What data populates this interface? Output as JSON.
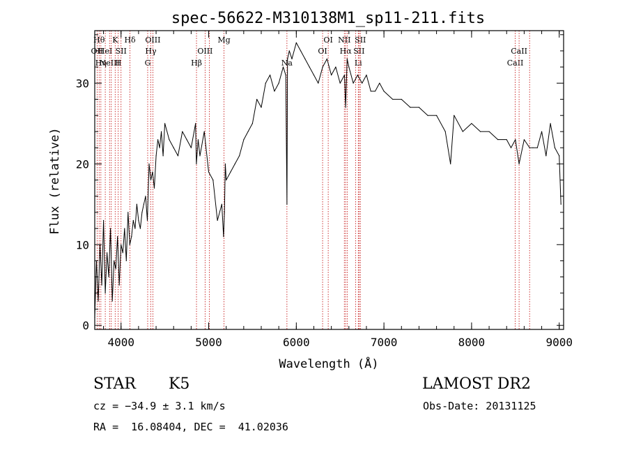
{
  "chart_data": {
    "type": "line",
    "title": "spec-56622-M310138M1_sp11-211.fits",
    "xlabel": "Wavelength (Å)",
    "ylabel": "Flux (relative)",
    "xlim": [
      3700,
      9050
    ],
    "ylim": [
      -0.5,
      36.5
    ],
    "xticks": [
      4000,
      5000,
      6000,
      7000,
      8000,
      9000
    ],
    "yticks": [
      0,
      10,
      20,
      30
    ],
    "grid": false,
    "legend": "none",
    "series": [
      {
        "x": [
          3700,
          3720,
          3740,
          3760,
          3780,
          3800,
          3820,
          3840,
          3860,
          3880,
          3900,
          3920,
          3940,
          3960,
          3980,
          4000,
          4020,
          4040,
          4060,
          4080,
          4100,
          4120,
          4140,
          4160,
          4180,
          4200,
          4220,
          4240,
          4260,
          4280,
          4300,
          4320,
          4340,
          4360,
          4380,
          4400,
          4420,
          4440,
          4460,
          4480,
          4500,
          4550,
          4600,
          4650,
          4700,
          4750,
          4800,
          4850,
          4860,
          4880,
          4900,
          4950,
          5000,
          5050,
          5100,
          5150,
          5170,
          5180,
          5190,
          5200,
          5250,
          5300,
          5350,
          5400,
          5450,
          5500,
          5550,
          5600,
          5650,
          5700,
          5750,
          5800,
          5850,
          5880,
          5893,
          5900,
          5920,
          5950,
          6000,
          6050,
          6100,
          6150,
          6200,
          6250,
          6300,
          6350,
          6400,
          6450,
          6500,
          6550,
          6563,
          6580,
          6600,
          6650,
          6700,
          6750,
          6800,
          6850,
          6900,
          6950,
          7000,
          7100,
          7200,
          7300,
          7400,
          7500,
          7600,
          7700,
          7760,
          7800,
          7900,
          8000,
          8100,
          8200,
          8300,
          8400,
          8450,
          8500,
          8542,
          8600,
          8662,
          8700,
          8750,
          8800,
          8850,
          8900,
          8950,
          9000,
          9020
        ],
        "y": [
          1,
          8,
          3,
          10,
          5,
          13,
          4,
          9,
          6,
          12,
          3,
          8,
          7,
          11,
          5,
          10,
          9,
          12,
          8,
          14,
          10,
          11,
          13,
          12,
          15,
          13,
          12,
          14,
          15,
          16,
          13,
          20,
          18,
          19,
          17,
          21,
          23,
          22,
          24,
          21,
          25,
          23,
          22,
          21,
          24,
          23,
          22,
          25,
          20,
          23,
          21,
          24,
          19,
          18,
          13,
          15,
          11,
          14,
          20,
          18,
          19,
          20,
          21,
          23,
          24,
          25,
          28,
          27,
          30,
          31,
          29,
          30,
          32,
          31,
          15,
          33,
          34,
          33,
          35,
          34,
          33,
          32,
          31,
          30,
          32,
          33,
          31,
          32,
          30,
          31,
          27,
          33,
          32,
          30,
          31,
          30,
          31,
          29,
          29,
          30,
          29,
          28,
          28,
          27,
          27,
          26,
          26,
          24,
          20,
          26,
          24,
          25,
          24,
          24,
          23,
          23,
          22,
          23,
          20,
          23,
          22,
          22,
          22,
          24,
          21,
          25,
          22,
          21,
          15
        ],
        "color": "#000000"
      }
    ],
    "lines": [
      {
        "x": 3727,
        "label": "OII",
        "row": 1
      },
      {
        "x": 3750,
        "label": "Hθ",
        "row": 0
      },
      {
        "x": 3770,
        "label": "Hη",
        "row": 2
      },
      {
        "x": 3820,
        "label": "HeI",
        "row": 1
      },
      {
        "x": 3869,
        "label": "NeIII",
        "row": 2
      },
      {
        "x": 3889,
        "label": "",
        "row": 0
      },
      {
        "x": 3933,
        "label": "K",
        "row": 0
      },
      {
        "x": 3968,
        "label": "H",
        "row": 2
      },
      {
        "x": 4000,
        "label": "SII",
        "row": 1
      },
      {
        "x": 4102,
        "label": "Hδ",
        "row": 0
      },
      {
        "x": 4304,
        "label": "G",
        "row": 2
      },
      {
        "x": 4340,
        "label": "Hγ",
        "row": 1
      },
      {
        "x": 4363,
        "label": "OIII",
        "row": 0
      },
      {
        "x": 4861,
        "label": "Hβ",
        "row": 2
      },
      {
        "x": 4959,
        "label": "OIII",
        "row": 1
      },
      {
        "x": 5007,
        "label": "",
        "row": 1
      },
      {
        "x": 5175,
        "label": "Mg",
        "row": 0
      },
      {
        "x": 5893,
        "label": "Na",
        "row": 2
      },
      {
        "x": 6300,
        "label": "OI",
        "row": 1
      },
      {
        "x": 6364,
        "label": "OI",
        "row": 0
      },
      {
        "x": 6548,
        "label": "NII",
        "row": 0
      },
      {
        "x": 6563,
        "label": "Hα",
        "row": 1
      },
      {
        "x": 6583,
        "label": "",
        "row": 0
      },
      {
        "x": 6678,
        "label": "",
        "row": 2
      },
      {
        "x": 6707,
        "label": "Li",
        "row": 2
      },
      {
        "x": 6716,
        "label": "SII",
        "row": 1
      },
      {
        "x": 6731,
        "label": "SII",
        "row": 0
      },
      {
        "x": 8498,
        "label": "CaII",
        "row": 2
      },
      {
        "x": 8542,
        "label": "CaII",
        "row": 1
      },
      {
        "x": 8662,
        "label": "",
        "row": 1
      }
    ]
  },
  "info": {
    "class": "STAR",
    "subclass": "K5",
    "survey": "LAMOST DR2",
    "cz": "cz = −34.9 ± 3.1 km/s",
    "obs_date": "Obs-Date: 20131125",
    "coords": "RA =  16.08404, DEC =  41.02036"
  }
}
